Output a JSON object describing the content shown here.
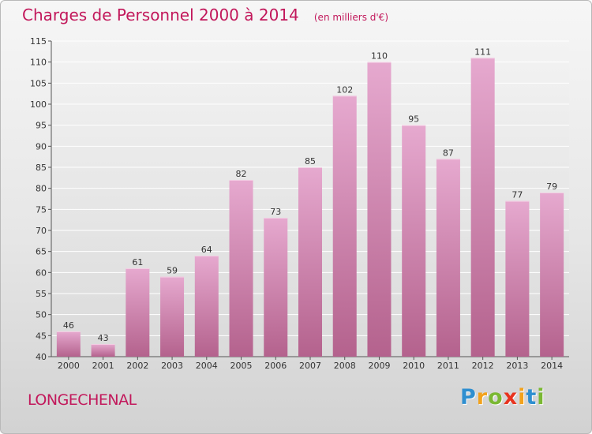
{
  "chart_data": {
    "type": "bar",
    "title": "Charges de Personnel 2000 à 2014",
    "subtitle": "(en milliers d'€)",
    "xlabel": "",
    "ylabel": "",
    "categories": [
      "2000",
      "2001",
      "2002",
      "2003",
      "2004",
      "2005",
      "2006",
      "2007",
      "2008",
      "2009",
      "2010",
      "2011",
      "2012",
      "2013",
      "2014"
    ],
    "values": [
      46,
      43,
      61,
      59,
      64,
      82,
      73,
      85,
      102,
      110,
      95,
      87,
      111,
      77,
      79
    ],
    "ylim": [
      40,
      115
    ],
    "yticks": [
      40,
      45,
      50,
      55,
      60,
      65,
      70,
      75,
      80,
      85,
      90,
      95,
      100,
      105,
      110,
      115
    ],
    "grid": true,
    "legend": "none"
  },
  "commune": "LONGECHENAL",
  "logo": {
    "letters": [
      "P",
      "r",
      "o",
      "x",
      "i",
      "t",
      "i"
    ],
    "colors": [
      "#2f8fd0",
      "#f2a21c",
      "#7ab833",
      "#e8331e",
      "#f2a21c",
      "#2f8fd0",
      "#7ab833"
    ]
  },
  "colors": {
    "accent": "#c2185b",
    "bar_light": "#e6a9cf",
    "bar_dark": "#b4628d"
  }
}
